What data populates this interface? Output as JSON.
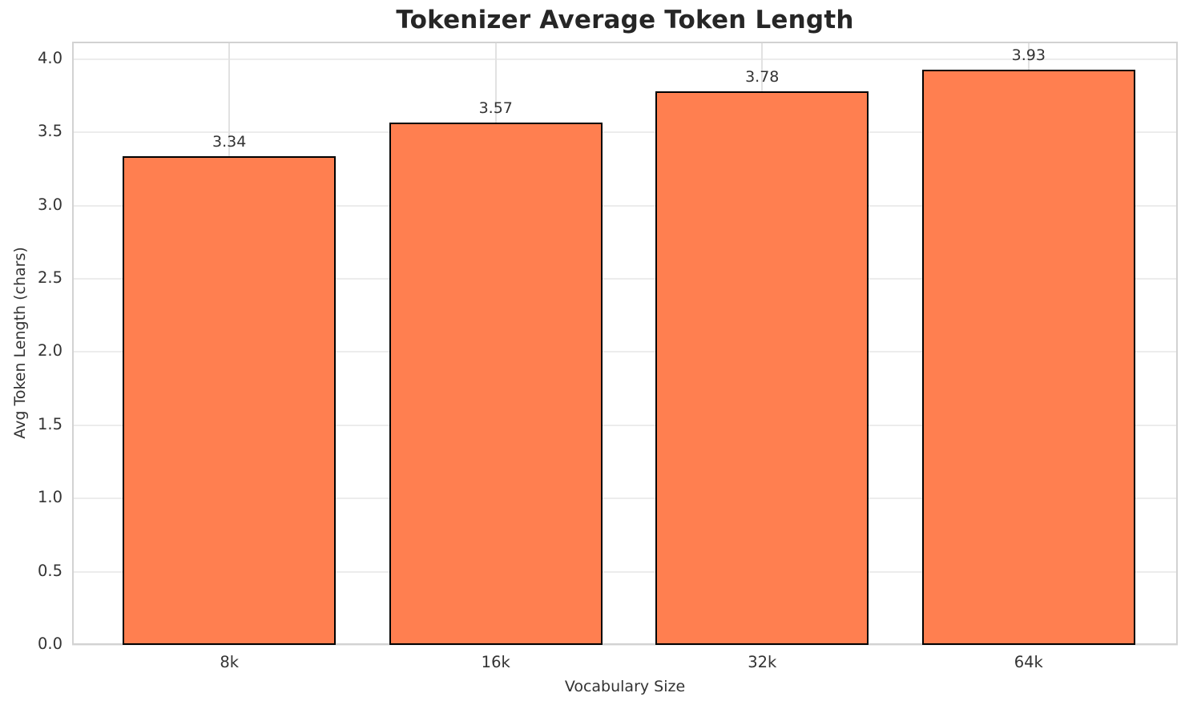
{
  "chart_data": {
    "type": "bar",
    "title": "Tokenizer Average Token Length",
    "xlabel": "Vocabulary Size",
    "ylabel": "Avg Token Length (chars)",
    "categories": [
      "8k",
      "16k",
      "32k",
      "64k"
    ],
    "values": [
      3.34,
      3.57,
      3.78,
      3.93
    ],
    "value_labels": [
      "3.34",
      "3.57",
      "3.78",
      "3.93"
    ],
    "yticks": [
      0.0,
      0.5,
      1.0,
      1.5,
      2.0,
      2.5,
      3.0,
      3.5,
      4.0
    ],
    "ytick_labels": [
      "0.0",
      "0.5",
      "1.0",
      "1.5",
      "2.0",
      "2.5",
      "3.0",
      "3.5",
      "4.0"
    ],
    "ylim": [
      0,
      4.12
    ],
    "xlim": [
      -0.59,
      3.56
    ],
    "bar_width": 0.8,
    "grid": true,
    "legend": null,
    "colors": {
      "bar_fill": "#FF7F50",
      "bar_edge": "#000000",
      "grid_horizontal": "#ececec",
      "grid_vertical": "#e2e2e2",
      "spine": "#d2d2d2",
      "title_text": "#262626",
      "tick_text": "#333333"
    }
  }
}
